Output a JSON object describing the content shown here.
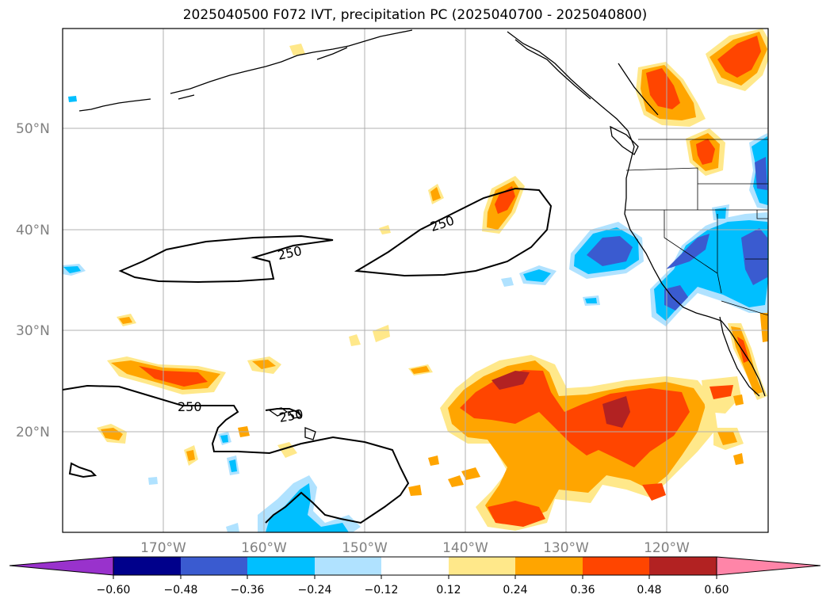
{
  "map": {
    "title": "2025040500 F072 IVT, precipitation PC (2025040700 - 2025040800)",
    "lat_labels": [
      "50°N",
      "40°N",
      "30°N",
      "20°N"
    ],
    "lon_labels": [
      "170°W",
      "160°W",
      "150°W",
      "140°W",
      "130°W",
      "120°W"
    ],
    "contour_labels": [
      "250",
      "250",
      "250",
      "250"
    ]
  },
  "colorbar": {
    "ticks": [
      "−0.60",
      "−0.48",
      "−0.36",
      "−0.24",
      "−0.12",
      "0.12",
      "0.24",
      "0.36",
      "0.48",
      "0.60"
    ],
    "colors": [
      "#9932cc",
      "#00008b",
      "#3a5bd0",
      "#00bfff",
      "#b0e2ff",
      "#ffffff",
      "#ffe88a",
      "#ffa500",
      "#ff4500",
      "#b22222",
      "#ff85a8"
    ]
  },
  "palette": {
    "land_outline": "#000000",
    "grid": "#b0b0b0",
    "ivt_contour": "#000000"
  }
}
